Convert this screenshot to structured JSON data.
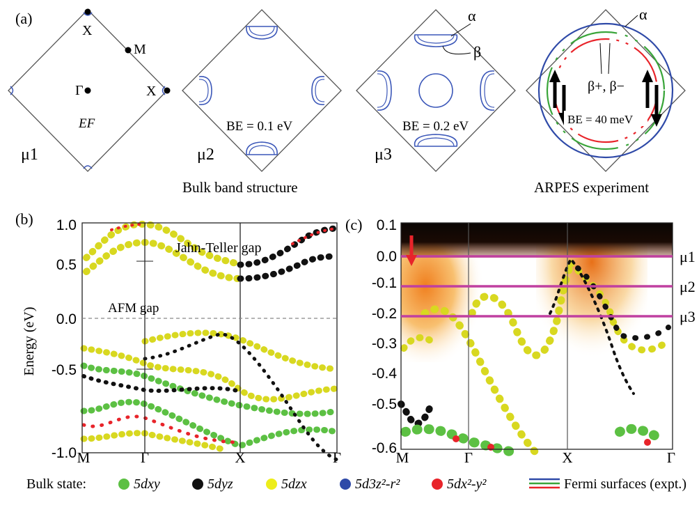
{
  "panel_a": {
    "label": "(a)",
    "mu1": {
      "name": "μ1",
      "ef": "EF",
      "points": {
        "gamma": "Γ",
        "m": "M",
        "x_top": "X",
        "x_right": "X"
      }
    },
    "mu2": {
      "name": "μ2",
      "be": "BE = 0.1 eV"
    },
    "mu3": {
      "name": "μ3",
      "be": "BE = 0.2 eV",
      "alpha": "α",
      "beta": "β"
    },
    "arpes": {
      "be": "BE = 40 meV",
      "alpha": "α",
      "beta": "β+, β−"
    },
    "caption_bulk": "Bulk band structure",
    "caption_arpes": "ARPES experiment"
  },
  "panel_b": {
    "label": "(b)",
    "ylabel": "Energy (eV)",
    "yticks": [
      "1.0",
      "0.5",
      "0.0",
      "-0.5",
      "-1.0"
    ],
    "xticks": [
      "M",
      "Γ",
      "X",
      "Γ"
    ],
    "annot_jt": "Jahn-Teller gap",
    "annot_afm": "AFM gap"
  },
  "panel_c": {
    "label": "(c)",
    "yticks": [
      "0.1",
      "0.0",
      "-0.1",
      "-0.2",
      "-0.3",
      "-0.4",
      "-0.5",
      "-0.6"
    ],
    "xticks": [
      "M",
      "Γ",
      "X",
      "Γ"
    ],
    "levels": [
      {
        "name": "μ1",
        "energy": 0.0
      },
      {
        "name": "μ2",
        "energy": -0.1
      },
      {
        "name": "μ3",
        "energy": -0.2
      }
    ]
  },
  "legend": {
    "prefix": "Bulk state:",
    "items": [
      {
        "label": "5dxy",
        "color": "#5cc043"
      },
      {
        "label": "5dyz",
        "color": "#111111"
      },
      {
        "label": "5dzx",
        "color": "#eded1a"
      },
      {
        "label": "5d3z²-r²",
        "color": "#2f4aa8"
      },
      {
        "label": "5dx²-y²",
        "color": "#e8242a"
      }
    ],
    "fs_label": "Fermi surfaces (expt.)",
    "fs_colors": [
      "#2f4aa8",
      "#3aa53a",
      "#e8242a"
    ]
  }
}
